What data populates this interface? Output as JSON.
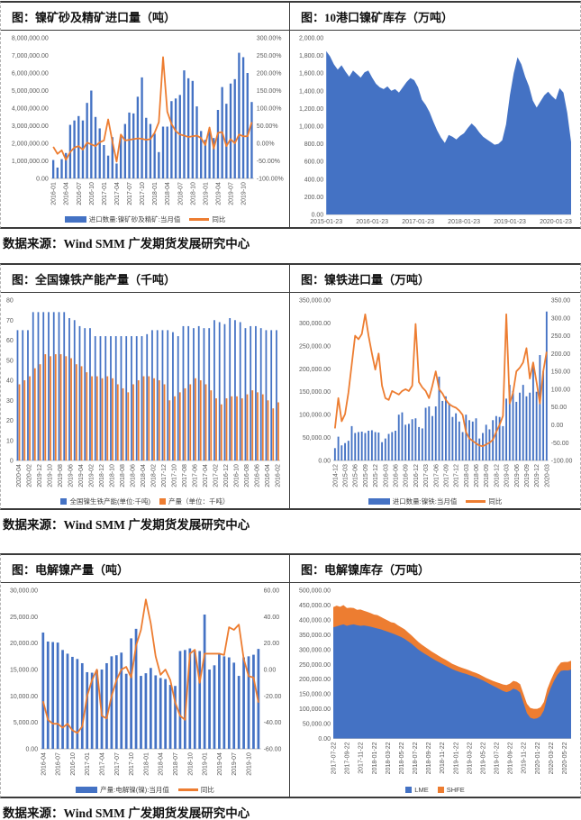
{
  "sections": [
    {
      "source": "数据来源：Wind SMM 广发期货发展研究中心"
    },
    {
      "source": "数据来源：Wind SMM 广发期货发展研究中心"
    },
    {
      "source": "数据来源：Wind SMM 广发期货发展研究中心"
    }
  ],
  "colors": {
    "bar_blue": "#4472C4",
    "line_orange": "#ED7D31",
    "axis_text": "#595959"
  },
  "chart_data": [
    {
      "type": "bar+line",
      "title": "图：镍矿砂及精矿进口量（吨）",
      "x_labels": [
        "2016-01",
        "2016-04",
        "2016-07",
        "2016-10",
        "2017-01",
        "2017-04",
        "2017-07",
        "2017-10",
        "2018-01",
        "2018-04",
        "2018-07",
        "2018-10",
        "2019-01",
        "2019-04",
        "2019-07",
        "2019-10"
      ],
      "x_label_every": 3,
      "rotate_x_labels": true,
      "show_legend": true,
      "grid": false,
      "left_axis": {
        "min": 0,
        "max": 8000000,
        "step": 1000000,
        "format": "num2"
      },
      "right_axis": {
        "min": -100,
        "max": 300,
        "step": 50,
        "format": "pct2"
      },
      "series": [
        {
          "name": "进口数量:镍矿砂及精矿:当月值",
          "type": "bar",
          "marker": "bar",
          "axis": "left",
          "color": "#4472C4",
          "values": [
            1050000,
            620000,
            1100000,
            1450000,
            3050000,
            3300000,
            3550000,
            3300000,
            4300000,
            5000000,
            3500000,
            2850000,
            1900000,
            1300000,
            2350000,
            850000,
            2450000,
            3100000,
            3750000,
            3700000,
            4650000,
            5750000,
            3450000,
            3100000,
            2550000,
            1500000,
            2950000,
            2950000,
            4400000,
            4550000,
            4750000,
            6150000,
            5700000,
            5550000,
            4100000,
            2700000,
            2200000,
            2800000,
            2300000,
            3900000,
            5200000,
            4250000,
            5400000,
            5650000,
            7150000,
            6900000,
            6000000,
            4350000
          ]
        },
        {
          "name": "同比",
          "type": "line",
          "marker": "line",
          "axis": "right",
          "color": "#ED7D31",
          "values": [
            -10,
            -30,
            -20,
            -47,
            -25,
            -12,
            -8,
            -18,
            2,
            -3,
            -8,
            3,
            8,
            68,
            5,
            -52,
            25,
            8,
            10,
            12,
            14,
            13,
            10,
            12,
            30,
            60,
            245,
            90,
            55,
            35,
            25,
            22,
            18,
            20,
            22,
            15,
            -5,
            45,
            -15,
            30,
            32,
            -8,
            12,
            0,
            25,
            20,
            20,
            60
          ]
        }
      ]
    },
    {
      "type": "area",
      "title": "图：10港口镍矿库存（万吨）",
      "x_labels": [
        "2015-01-23",
        "2016-01-23",
        "2017-01-23",
        "2018-01-23",
        "2019-01-23",
        "2020-01-23"
      ],
      "x_label_every": 12,
      "rotate_x_labels": false,
      "show_legend": false,
      "grid": false,
      "left_axis": {
        "min": 0,
        "max": 2000,
        "step": 200,
        "format": "num2"
      },
      "series": [
        {
          "name": "10港口镍矿库存",
          "type": "area",
          "marker": "square",
          "axis": "left",
          "color": "#4472C4",
          "values": [
            1850,
            1790,
            1700,
            1640,
            1690,
            1620,
            1560,
            1630,
            1590,
            1550,
            1610,
            1630,
            1550,
            1480,
            1440,
            1420,
            1450,
            1400,
            1420,
            1380,
            1440,
            1500,
            1545,
            1520,
            1440,
            1300,
            1240,
            1160,
            1050,
            950,
            870,
            810,
            900,
            880,
            850,
            890,
            920,
            980,
            1030,
            990,
            930,
            880,
            850,
            820,
            790,
            800,
            840,
            1020,
            1350,
            1600,
            1780,
            1700,
            1560,
            1450,
            1290,
            1210,
            1280,
            1350,
            1390,
            1340,
            1300,
            1430,
            1380,
            1150,
            820
          ]
        }
      ]
    },
    {
      "type": "grouped-bar",
      "title": "图：全国镍铁产能产量（千吨）",
      "x_labels": [
        "2020-04",
        "2020-02",
        "2019-12",
        "2019-10",
        "2019-08",
        "2019-06",
        "2019-04",
        "2019-02",
        "2018-12",
        "2018-10",
        "2018-08",
        "2018-06",
        "2018-04",
        "2018-02",
        "2017-12",
        "2017-10",
        "2017-08",
        "2017-06",
        "2017-04",
        "2017-02",
        "2016-12",
        "2016-10",
        "2016-08",
        "2016-06",
        "2016-04",
        "2016-02"
      ],
      "x_label_every": 2,
      "rotate_x_labels": true,
      "show_legend": true,
      "grid": false,
      "left_axis": {
        "min": 0,
        "max": 80,
        "step": 10,
        "format": "int"
      },
      "series": [
        {
          "name": "全国镍生铁产能(单位:千吨)",
          "type": "bar",
          "marker": "square",
          "axis": "left",
          "color": "#4472C4",
          "values": [
            65,
            65,
            65,
            74,
            74,
            74,
            74,
            74,
            74,
            74,
            71,
            70,
            67,
            66,
            66,
            62,
            62,
            62,
            62,
            62,
            62,
            62,
            62,
            62,
            62,
            63,
            65,
            65,
            65,
            65,
            64,
            62,
            67,
            67,
            66,
            67,
            66,
            66,
            70,
            69,
            68,
            71,
            70,
            69,
            66,
            67,
            67,
            66,
            65,
            65,
            65
          ]
        },
        {
          "name": "产量（单位：千吨）",
          "type": "bar",
          "marker": "square",
          "axis": "left",
          "color": "#ED7D31",
          "values": [
            38,
            40,
            42,
            46,
            48,
            53,
            52,
            53,
            53,
            52,
            51,
            48,
            47,
            44,
            42,
            42,
            41,
            42,
            41,
            38,
            36,
            34,
            38,
            40,
            42,
            42,
            41,
            40,
            38,
            30,
            32,
            34,
            36,
            38,
            41,
            40,
            38,
            35,
            31,
            28,
            31,
            32,
            32,
            31,
            33,
            35,
            34,
            33,
            30,
            26,
            29
          ]
        }
      ]
    },
    {
      "type": "bar+line",
      "title": "图：镍铁进口量（万吨）",
      "x_labels": [
        "2014-12",
        "2015-03",
        "2015-06",
        "2015-09",
        "2015-12",
        "2016-03",
        "2016-06",
        "2016-09",
        "2016-12",
        "2017-03",
        "2017-06",
        "2017-09",
        "2017-12",
        "2018-03",
        "2018-06",
        "2018-09",
        "2018-12",
        "2019-03",
        "2019-06",
        "2019-09",
        "2019-12",
        "2020-03"
      ],
      "x_label_every": 3,
      "rotate_x_labels": true,
      "show_legend": true,
      "grid": false,
      "left_axis": {
        "min": 0,
        "max": 350000,
        "step": 50000,
        "format": "num2"
      },
      "right_axis": {
        "min": -100,
        "max": 350,
        "step": 50,
        "format": "num2"
      },
      "series": [
        {
          "name": "进口数量:镍铁:当月值",
          "type": "bar",
          "marker": "bar",
          "axis": "left",
          "color": "#4472C4",
          "values": [
            27000,
            52000,
            33000,
            38000,
            43000,
            75000,
            60000,
            62000,
            63000,
            60000,
            65000,
            66000,
            62000,
            61000,
            40000,
            48000,
            58000,
            62000,
            65000,
            100000,
            105000,
            78000,
            80000,
            90000,
            92000,
            73000,
            70000,
            115000,
            118000,
            97000,
            118000,
            183000,
            130000,
            140000,
            125000,
            95000,
            103000,
            85000,
            62000,
            100000,
            88000,
            85000,
            92000,
            48000,
            60000,
            78000,
            68000,
            88000,
            97000,
            95000,
            75000,
            135000,
            165000,
            152000,
            128000,
            148000,
            165000,
            140000,
            148000,
            208000,
            150000,
            230000,
            195000,
            325000
          ]
        },
        {
          "name": "同比",
          "type": "line",
          "marker": "line",
          "axis": "right",
          "color": "#ED7D31",
          "values": [
            -10,
            75,
            10,
            30,
            90,
            170,
            250,
            240,
            255,
            310,
            250,
            200,
            155,
            200,
            110,
            75,
            70,
            95,
            90,
            85,
            95,
            100,
            95,
            110,
            283,
            120,
            105,
            95,
            75,
            110,
            150,
            100,
            88,
            70,
            58,
            52,
            48,
            40,
            28,
            -20,
            -38,
            -45,
            -52,
            -58,
            -60,
            -55,
            -50,
            -42,
            -20,
            0,
            25,
            310,
            60,
            90,
            150,
            160,
            175,
            215,
            130,
            175,
            120,
            60,
            150,
            205
          ]
        }
      ]
    },
    {
      "type": "bar+line",
      "title": "图：电解镍产量（吨）",
      "x_labels": [
        "2016-04",
        "2016-07",
        "2016-10",
        "2017-01",
        "2017-04",
        "2017-07",
        "2017-10",
        "2018-01",
        "2018-04",
        "2018-07",
        "2018-10",
        "2019-01",
        "2019-04",
        "2019-07",
        "2019-10"
      ],
      "x_label_every": 3,
      "rotate_x_labels": true,
      "show_legend": true,
      "grid": false,
      "left_axis": {
        "min": 0,
        "max": 30000,
        "step": 5000,
        "format": "num2"
      },
      "right_axis": {
        "min": -60,
        "max": 60,
        "step": 20,
        "format": "num2"
      },
      "series": [
        {
          "name": "产量:电解镍(镍):当月值",
          "type": "bar",
          "marker": "bar",
          "axis": "left",
          "color": "#4472C4",
          "values": [
            22000,
            20300,
            20200,
            20100,
            18700,
            18000,
            17400,
            17000,
            16200,
            14500,
            14400,
            14900,
            15000,
            16200,
            17500,
            17700,
            18200,
            14200,
            20900,
            22700,
            13800,
            14300,
            15300,
            13900,
            13400,
            13200,
            12100,
            11900,
            18500,
            18700,
            19000,
            18600,
            18500,
            25400,
            15000,
            15800,
            17900,
            17500,
            17300,
            16300,
            13800,
            17300,
            17500,
            17800,
            18900
          ]
        },
        {
          "name": "同比",
          "type": "line",
          "marker": "line",
          "axis": "right",
          "color": "#ED7D31",
          "values": [
            -24,
            -38,
            -41,
            -41,
            -44,
            -41,
            -46,
            -48,
            -43,
            -20,
            -8,
            0,
            -35,
            -37,
            -20,
            -8,
            0,
            2,
            -6,
            18,
            30,
            53,
            35,
            10,
            -4,
            0,
            -8,
            -25,
            -35,
            -38,
            12,
            15,
            -10,
            12,
            12,
            12,
            12,
            11,
            32,
            30,
            34,
            8,
            -5,
            -6,
            -25
          ]
        }
      ]
    },
    {
      "type": "stacked-area",
      "title": "图：电解镍库存（万吨）",
      "x_labels": [
        "2017-07-22",
        "2017-09-22",
        "2017-11-22",
        "2018-01-22",
        "2018-03-22",
        "2018-05-22",
        "2018-07-22",
        "2018-09-22",
        "2018-11-22",
        "2019-01-22",
        "2019-03-22",
        "2019-05-22",
        "2019-07-22",
        "2019-09-22",
        "2019-11-22",
        "2020-01-22",
        "2020-03-22",
        "2020-05-22"
      ],
      "x_label_every": 4,
      "rotate_x_labels": true,
      "show_legend": true,
      "stacked": true,
      "grid": false,
      "left_axis": {
        "min": 0,
        "max": 500000,
        "step": 50000,
        "format": "num2"
      },
      "series": [
        {
          "name": "LME",
          "type": "area",
          "marker": "square",
          "axis": "left",
          "color": "#4472C4",
          "values": [
            375000,
            378000,
            382000,
            385000,
            380000,
            383000,
            385000,
            382000,
            380000,
            381000,
            379000,
            377000,
            374000,
            371000,
            368000,
            364000,
            360000,
            356000,
            352000,
            347000,
            342000,
            336000,
            328000,
            320000,
            310000,
            300000,
            292000,
            285000,
            278000,
            271000,
            264000,
            258000,
            252000,
            246000,
            240000,
            234000,
            229000,
            225000,
            221000,
            218000,
            214000,
            210000,
            206000,
            201000,
            196000,
            190000,
            184000,
            178000,
            172000,
            166000,
            160000,
            156000,
            160000,
            168000,
            164000,
            155000,
            120000,
            85000,
            70000,
            66000,
            68000,
            75000,
            95000,
            140000,
            170000,
            195000,
            215000,
            228000,
            230000,
            229000,
            232000
          ]
        },
        {
          "name": "SHFE",
          "type": "area",
          "marker": "square",
          "axis": "left",
          "color": "#ED7D31",
          "values": [
            68000,
            70000,
            62000,
            65000,
            60000,
            58000,
            55000,
            52000,
            55000,
            50000,
            48000,
            46000,
            44000,
            45000,
            42000,
            40000,
            38000,
            36000,
            38000,
            35000,
            33000,
            32000,
            30000,
            28000,
            27000,
            26000,
            25000,
            24000,
            23000,
            22000,
            22000,
            21000,
            20000,
            20000,
            19000,
            18000,
            18000,
            17000,
            17000,
            16000,
            16000,
            15000,
            15000,
            15000,
            14000,
            14000,
            15000,
            16000,
            18000,
            20000,
            22000,
            24000,
            25000,
            26000,
            27000,
            28000,
            30000,
            32000,
            33000,
            34000,
            32000,
            30000,
            28000,
            27000,
            26000,
            26000,
            27000,
            28000,
            28000,
            29000,
            30000
          ]
        }
      ]
    }
  ]
}
